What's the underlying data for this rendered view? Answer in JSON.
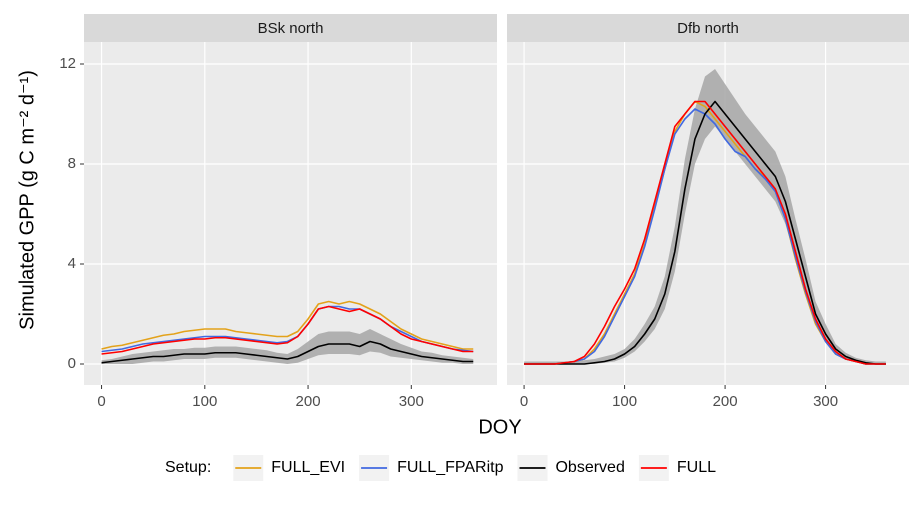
{
  "chart_data": [
    {
      "type": "line",
      "title": "BSk north",
      "x": [
        0,
        10,
        20,
        30,
        40,
        50,
        60,
        70,
        80,
        90,
        100,
        110,
        120,
        130,
        140,
        150,
        160,
        170,
        180,
        190,
        200,
        210,
        220,
        230,
        240,
        250,
        260,
        270,
        280,
        290,
        300,
        310,
        320,
        330,
        340,
        350,
        360
      ],
      "xlim": [
        -17,
        383
      ],
      "xticks": [
        0,
        100,
        200,
        300
      ],
      "ylim": [
        -0.84,
        12.88
      ],
      "yticks": [
        0,
        4,
        8,
        12
      ],
      "grid": true,
      "ribbon": {
        "lower": [
          0,
          0,
          0,
          0,
          0.05,
          0.1,
          0.1,
          0.15,
          0.2,
          0.2,
          0.2,
          0.25,
          0.25,
          0.25,
          0.2,
          0.15,
          0.1,
          0.05,
          0,
          0.05,
          0.2,
          0.35,
          0.4,
          0.4,
          0.4,
          0.35,
          0.5,
          0.45,
          0.3,
          0.25,
          0.2,
          0.15,
          0.1,
          0.05,
          0.05,
          0,
          0
        ],
        "upper": [
          0.15,
          0.2,
          0.3,
          0.4,
          0.45,
          0.5,
          0.55,
          0.6,
          0.6,
          0.65,
          0.65,
          0.7,
          0.7,
          0.7,
          0.65,
          0.6,
          0.55,
          0.45,
          0.4,
          0.6,
          0.9,
          1.2,
          1.3,
          1.3,
          1.3,
          1.2,
          1.4,
          1.2,
          1.0,
          0.8,
          0.65,
          0.5,
          0.45,
          0.35,
          0.3,
          0.25,
          0.2
        ],
        "color": "#a6a6a6"
      },
      "series": [
        {
          "name": "FULL_EVI",
          "color": "#e3a21a",
          "values": [
            0.6,
            0.7,
            0.75,
            0.85,
            0.95,
            1.05,
            1.15,
            1.2,
            1.3,
            1.35,
            1.4,
            1.4,
            1.4,
            1.3,
            1.25,
            1.2,
            1.15,
            1.1,
            1.1,
            1.3,
            1.8,
            2.4,
            2.5,
            2.4,
            2.5,
            2.4,
            2.2,
            2.0,
            1.7,
            1.4,
            1.2,
            1.0,
            0.9,
            0.8,
            0.7,
            0.6,
            0.6
          ]
        },
        {
          "name": "FULL_FPARitp",
          "color": "#4169e1",
          "values": [
            0.5,
            0.55,
            0.6,
            0.7,
            0.8,
            0.85,
            0.9,
            0.95,
            1.0,
            1.05,
            1.1,
            1.1,
            1.1,
            1.05,
            1.0,
            0.95,
            0.9,
            0.85,
            0.9,
            1.1,
            1.6,
            2.2,
            2.3,
            2.3,
            2.2,
            2.2,
            2.0,
            1.8,
            1.5,
            1.3,
            1.1,
            0.9,
            0.8,
            0.7,
            0.6,
            0.55,
            0.5
          ]
        },
        {
          "name": "Observed",
          "color": "#000000",
          "values": [
            0.05,
            0.1,
            0.15,
            0.2,
            0.25,
            0.3,
            0.3,
            0.35,
            0.4,
            0.4,
            0.4,
            0.45,
            0.45,
            0.45,
            0.4,
            0.35,
            0.3,
            0.25,
            0.2,
            0.3,
            0.5,
            0.7,
            0.8,
            0.8,
            0.8,
            0.7,
            0.9,
            0.8,
            0.6,
            0.5,
            0.4,
            0.3,
            0.25,
            0.2,
            0.15,
            0.1,
            0.1
          ]
        },
        {
          "name": "FULL",
          "color": "#ff0000",
          "values": [
            0.4,
            0.45,
            0.5,
            0.6,
            0.7,
            0.8,
            0.85,
            0.9,
            0.95,
            1.0,
            1.0,
            1.05,
            1.05,
            1.0,
            0.95,
            0.9,
            0.85,
            0.8,
            0.85,
            1.1,
            1.6,
            2.2,
            2.3,
            2.2,
            2.1,
            2.2,
            2.0,
            1.8,
            1.5,
            1.2,
            1.0,
            0.9,
            0.8,
            0.7,
            0.6,
            0.5,
            0.5
          ]
        }
      ]
    },
    {
      "type": "line",
      "title": "Dfb north",
      "x": [
        0,
        10,
        20,
        30,
        40,
        50,
        60,
        70,
        80,
        90,
        100,
        110,
        120,
        130,
        140,
        150,
        160,
        170,
        180,
        190,
        200,
        210,
        220,
        230,
        240,
        250,
        260,
        270,
        280,
        290,
        300,
        310,
        320,
        330,
        340,
        350,
        360
      ],
      "xlim": [
        -17,
        383
      ],
      "xticks": [
        0,
        100,
        200,
        300
      ],
      "ylim": [
        -0.84,
        12.88
      ],
      "yticks": [
        0,
        4,
        8,
        12
      ],
      "grid": true,
      "ribbon": {
        "lower": [
          0,
          0,
          0,
          0,
          0,
          0,
          0,
          0,
          0.05,
          0.1,
          0.25,
          0.5,
          0.9,
          1.4,
          2.2,
          3.7,
          6,
          8,
          9,
          9.5,
          9,
          8.5,
          8,
          7.5,
          7,
          6.5,
          5.6,
          4.2,
          2.9,
          1.6,
          0.9,
          0.4,
          0.2,
          0.1,
          0,
          0,
          0
        ],
        "upper": [
          0.1,
          0.1,
          0.1,
          0.1,
          0.1,
          0.1,
          0.15,
          0.2,
          0.3,
          0.4,
          0.6,
          1.0,
          1.6,
          2.3,
          3.5,
          5.5,
          8.2,
          10.2,
          11.5,
          11.8,
          11.2,
          10.6,
          10,
          9.5,
          9,
          8.5,
          7.5,
          5.8,
          4.2,
          2.5,
          1.6,
          0.8,
          0.45,
          0.25,
          0.15,
          0.1,
          0.1
        ],
        "color": "#a6a6a6"
      },
      "series": [
        {
          "name": "FULL_EVI",
          "color": "#e3a21a",
          "values": [
            0,
            0,
            0,
            0,
            0.05,
            0.1,
            0.2,
            0.6,
            1.2,
            2.0,
            2.8,
            3.6,
            4.8,
            6.3,
            7.8,
            9.3,
            10,
            10.5,
            10.3,
            9.8,
            9.3,
            8.8,
            8.3,
            7.8,
            7.5,
            7,
            5.8,
            4.2,
            2.8,
            1.6,
            0.9,
            0.4,
            0.2,
            0.1,
            0,
            0,
            0
          ]
        },
        {
          "name": "FULL_FPARitp",
          "color": "#4169e1",
          "values": [
            0,
            0,
            0,
            0,
            0.05,
            0.1,
            0.2,
            0.5,
            1.1,
            1.9,
            2.7,
            3.5,
            4.7,
            6.2,
            7.8,
            9.2,
            9.8,
            10.2,
            10,
            9.6,
            9.0,
            8.5,
            8.3,
            7.8,
            7.4,
            6.9,
            5.8,
            4.3,
            2.9,
            1.7,
            0.9,
            0.4,
            0.2,
            0.1,
            0,
            0,
            0
          ]
        },
        {
          "name": "Observed",
          "color": "#000000",
          "values": [
            0,
            0,
            0,
            0,
            0,
            0,
            0,
            0.05,
            0.1,
            0.2,
            0.4,
            0.7,
            1.2,
            1.8,
            2.8,
            4.5,
            7,
            9,
            10,
            10.5,
            10,
            9.5,
            9,
            8.5,
            8,
            7.5,
            6.5,
            5,
            3.5,
            2,
            1.2,
            0.6,
            0.3,
            0.15,
            0.05,
            0,
            0
          ]
        },
        {
          "name": "FULL",
          "color": "#ff0000",
          "values": [
            0,
            0,
            0,
            0,
            0.05,
            0.1,
            0.3,
            0.8,
            1.5,
            2.3,
            3.0,
            3.8,
            5.0,
            6.5,
            8,
            9.5,
            10,
            10.5,
            10.5,
            10,
            9.5,
            9,
            8.5,
            8,
            7.5,
            7,
            6,
            4.5,
            3,
            1.8,
            1,
            0.5,
            0.2,
            0.1,
            0,
            0,
            0
          ]
        }
      ]
    }
  ],
  "x_label": "DOY",
  "y_label": "Simulated GPP (g C m⁻² d⁻¹)",
  "legend_title": "Setup:"
}
